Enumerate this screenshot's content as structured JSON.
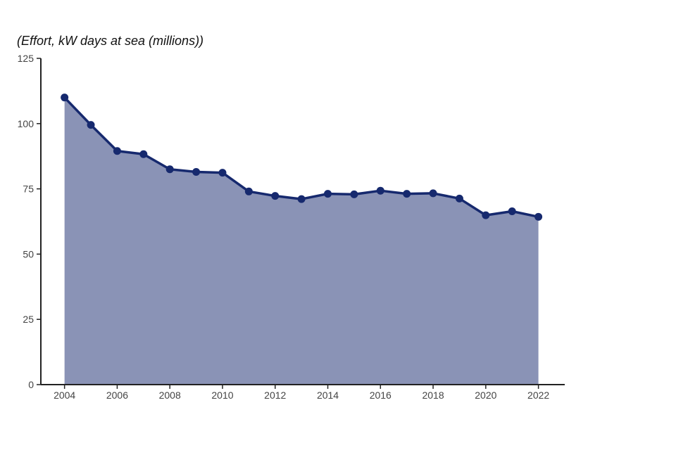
{
  "chart_data": {
    "type": "area",
    "title": "",
    "xlabel": "",
    "ylabel": "(Effort, kW days at sea (millions))",
    "x": [
      2004,
      2005,
      2006,
      2007,
      2008,
      2009,
      2010,
      2011,
      2012,
      2013,
      2014,
      2015,
      2016,
      2017,
      2018,
      2019,
      2020,
      2021,
      2022
    ],
    "series": [
      {
        "values": [
          110,
          99.5,
          89.5,
          88.3,
          82.5,
          81.5,
          81.2,
          74,
          72.3,
          71.1,
          73.1,
          72.9,
          74.3,
          73.1,
          73.3,
          71.3,
          64.9,
          66.4,
          64.3
        ]
      }
    ],
    "xticks": [
      2004,
      2006,
      2008,
      2010,
      2012,
      2014,
      2016,
      2018,
      2020,
      2022
    ],
    "yticks": [
      0,
      25,
      50,
      75,
      100,
      125
    ],
    "xlim": [
      2003.1,
      2023
    ],
    "ylim": [
      0,
      125
    ],
    "grid": false,
    "legend": "none",
    "colors": {
      "line": "#16296e",
      "fill": "#8a93b6",
      "axis": "#222222"
    }
  }
}
